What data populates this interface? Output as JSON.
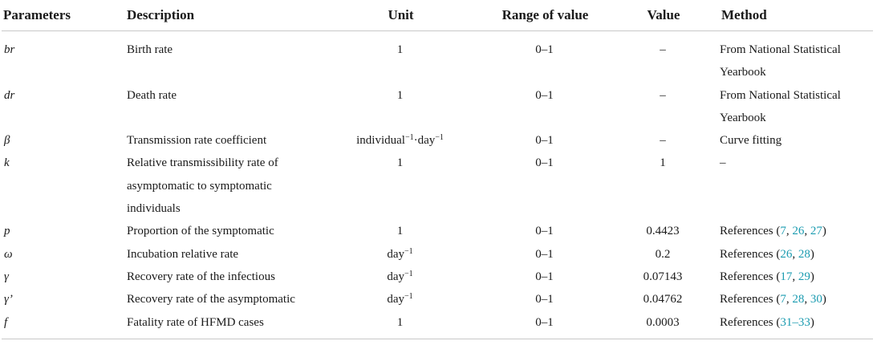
{
  "headers": [
    "Parameters",
    "Description",
    "Unit",
    "Range of value",
    "Value",
    "Method"
  ],
  "rows": [
    {
      "param": "br",
      "desc": "Birth rate",
      "unit": "1",
      "range": "0–1",
      "value": "–",
      "method": {
        "text": "From National Statistical Yearbook",
        "refs": []
      }
    },
    {
      "param": "dr",
      "desc": "Death rate",
      "unit": "1",
      "range": "0–1",
      "value": "–",
      "method": {
        "text": "From National Statistical Yearbook",
        "refs": []
      }
    },
    {
      "param": "β",
      "desc": "Transmission rate coefficient",
      "unit": "individual⁻¹·day⁻¹",
      "range": "0–1",
      "value": "–",
      "method": {
        "text": "Curve fitting",
        "refs": []
      }
    },
    {
      "param": "k",
      "desc": "Relative transmissibility rate of asymptomatic to symptomatic individuals",
      "unit": "1",
      "range": "0–1",
      "value": "1",
      "method": {
        "text": "–",
        "refs": []
      }
    },
    {
      "param": "p",
      "desc": "Proportion of the symptomatic",
      "unit": "1",
      "range": "0–1",
      "value": "0.4423",
      "method": {
        "text": "References",
        "refs": [
          "7",
          "26",
          "27"
        ]
      }
    },
    {
      "param": "ω",
      "desc": "Incubation relative rate",
      "unit": "day⁻¹",
      "range": "0–1",
      "value": "0.2",
      "method": {
        "text": "References",
        "refs": [
          "26",
          "28"
        ]
      }
    },
    {
      "param": "γ",
      "desc": "Recovery rate of the infectious",
      "unit": "day⁻¹",
      "range": "0–1",
      "value": "0.07143",
      "method": {
        "text": "References",
        "refs": [
          "17",
          "29"
        ]
      }
    },
    {
      "param": "γ’",
      "desc": "Recovery rate of the asymptomatic",
      "unit": "day⁻¹",
      "range": "0–1",
      "value": "0.04762",
      "method": {
        "text": "References",
        "refs": [
          "7",
          "28",
          "30"
        ]
      }
    },
    {
      "param": "f",
      "desc": "Fatality rate of HFMD cases",
      "unit": "1",
      "range": "0–1",
      "value": "0.0003",
      "method": {
        "text": "References",
        "refs": [
          "31–33"
        ]
      }
    }
  ],
  "colors": {
    "reference_link": "#1a9bb0",
    "rule": "#c8c8c8",
    "text": "#1a1a1a"
  }
}
